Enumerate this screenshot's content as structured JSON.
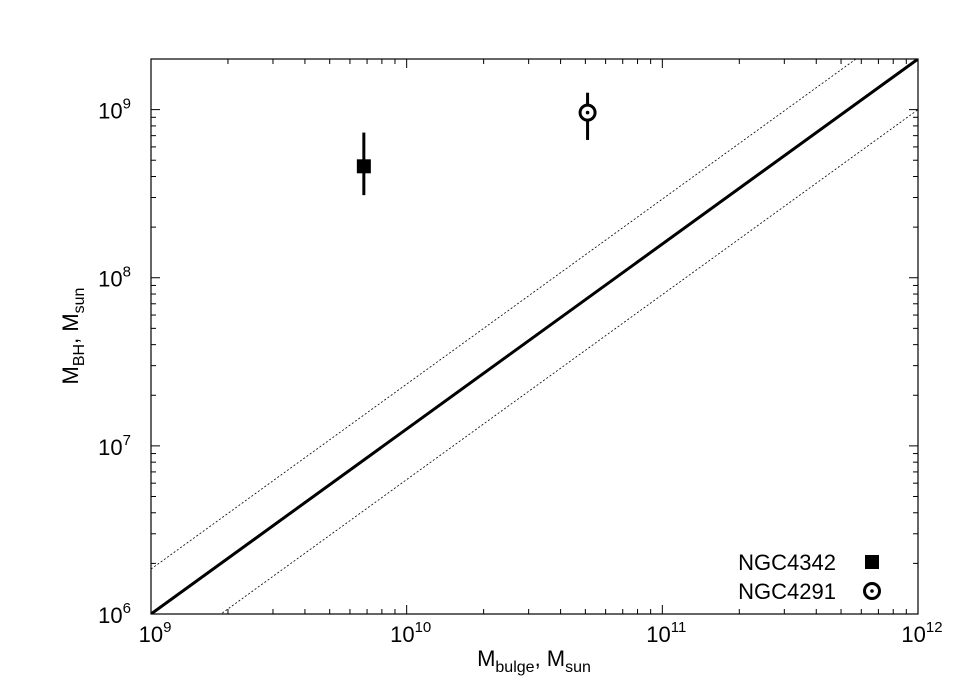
{
  "chart_data": {
    "type": "scatter",
    "title": "",
    "xlabel": {
      "main": "M",
      "sub1": "bulge",
      "sep": ", M",
      "sub2": "sun"
    },
    "ylabel": {
      "main": "M",
      "sub1": "BH",
      "sep": ", M",
      "sub2": "sun"
    },
    "x_scale": "log",
    "y_scale": "log",
    "xlim": [
      1000000000.0,
      1000000000000.0
    ],
    "ylim": [
      1000000.0,
      2000000000.0
    ],
    "x_ticks": [
      {
        "value": 1000000000.0,
        "base": "10",
        "exp": "9"
      },
      {
        "value": 10000000000.0,
        "base": "10",
        "exp": "10"
      },
      {
        "value": 100000000000.0,
        "base": "10",
        "exp": "11"
      },
      {
        "value": 1000000000000.0,
        "base": "10",
        "exp": "12"
      }
    ],
    "y_ticks": [
      {
        "value": 1000000.0,
        "base": "10",
        "exp": "6"
      },
      {
        "value": 10000000.0,
        "base": "10",
        "exp": "7"
      },
      {
        "value": 100000000.0,
        "base": "10",
        "exp": "8"
      },
      {
        "value": 1000000000.0,
        "base": "10",
        "exp": "9"
      }
    ],
    "grid": false,
    "legend_position": "bottom-right",
    "series": [
      {
        "name": "NGC4342",
        "marker": "filled-square",
        "x": 6800000000.0,
        "y": 460000000.0,
        "y_err": [
          310000000.0,
          730000000.0
        ]
      },
      {
        "name": "NGC4291",
        "marker": "dotted-circle",
        "x": 51000000000.0,
        "y": 960000000.0,
        "y_err": [
          660000000.0,
          1260000000.0
        ]
      }
    ],
    "relations": [
      {
        "style": "solid",
        "points": [
          [
            1000000000.0,
            1000000.0
          ],
          [
            1000000000000.0,
            2000000000.0
          ]
        ]
      },
      {
        "style": "dotted",
        "points": [
          [
            1000000000.0,
            1850000.0
          ],
          [
            1000000000000.0,
            3700000000.0
          ]
        ]
      },
      {
        "style": "dotted",
        "points": [
          [
            1000000000.0,
            500000.0
          ],
          [
            1000000000000.0,
            1000000000.0
          ]
        ]
      }
    ]
  }
}
